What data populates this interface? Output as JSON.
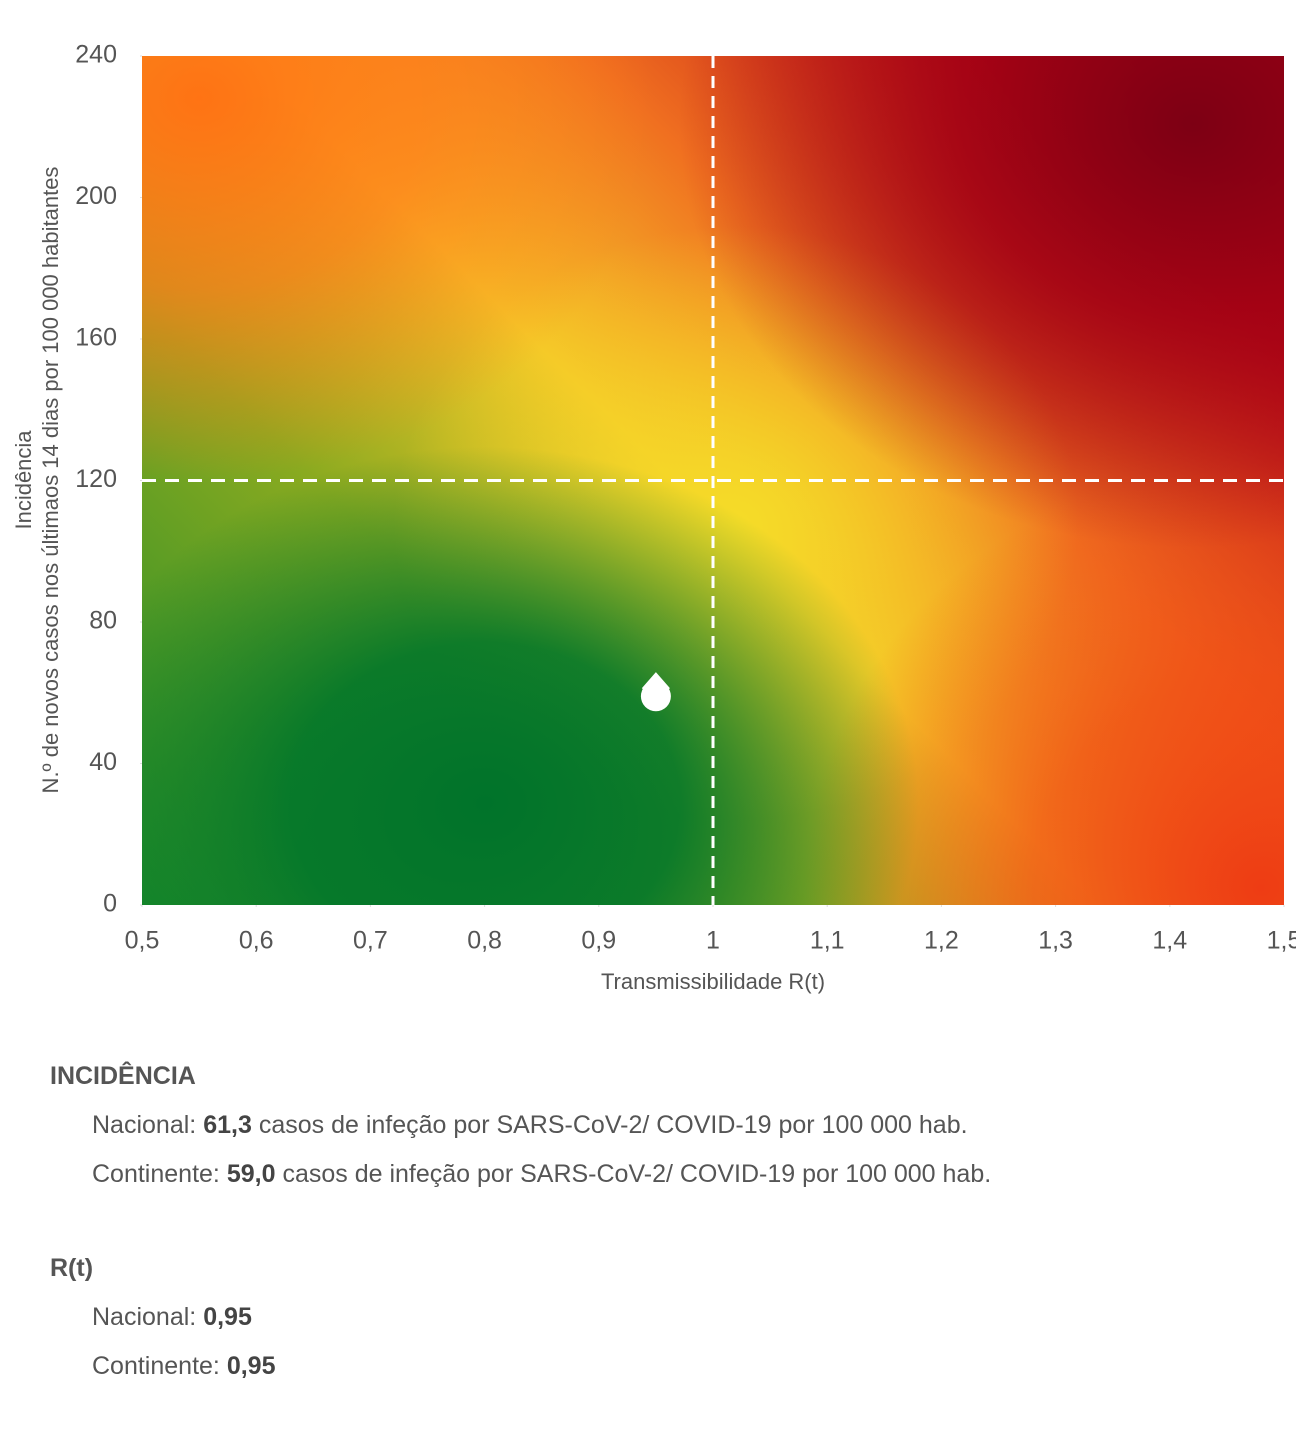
{
  "chart_data": {
    "type": "scatter",
    "x_label": "Transmissibilidade R(t)",
    "y_label": [
      "Incidência",
      "N.º de novos casos nos últimaos 14 dias por 100 000 habitantes"
    ],
    "x": [
      0.95,
      0.95
    ],
    "values": [
      61.3,
      59.0
    ],
    "markers": [
      "diamond",
      "circle"
    ],
    "color": "#ffffff",
    "xlim": [
      0.5,
      1.5
    ],
    "xticks": [
      {
        "value": 0.5,
        "label": "0,5"
      },
      {
        "value": 0.6,
        "label": "0,6"
      },
      {
        "value": 0.7,
        "label": "0,7"
      },
      {
        "value": 0.8,
        "label": "0,8"
      },
      {
        "value": 0.9,
        "label": "0,9"
      },
      1,
      {
        "value": 1.1,
        "label": "1,1"
      },
      {
        "value": 1.2,
        "label": "1,2"
      },
      {
        "value": 1.3,
        "label": "1,3"
      },
      {
        "value": 1.4,
        "label": "1,4"
      },
      {
        "value": 1.5,
        "label": "1,5"
      }
    ],
    "ylim": [
      0,
      240
    ],
    "yticks": [
      0,
      40,
      80,
      120,
      160,
      200,
      240
    ],
    "reference_lines": {
      "x": 1,
      "y": 120
    }
  },
  "sections": [
    {
      "title": "INCIDÊNCIA",
      "lines": [
        {
          "label": "Nacional:",
          "value": "61,3",
          "text": "casos de infeção por SARS-CoV-2/ COVID-19 por 100 000 hab."
        },
        {
          "label": "Continente:",
          "value": "59,0",
          "text": "casos de infeção por SARS-CoV-2/ COVID-19 por 100 000 hab."
        }
      ]
    },
    {
      "title": "R(t)",
      "lines": [
        {
          "label": "Nacional:",
          "value": "0,95"
        },
        {
          "label": "Continente:",
          "value": "0,95"
        }
      ]
    }
  ]
}
